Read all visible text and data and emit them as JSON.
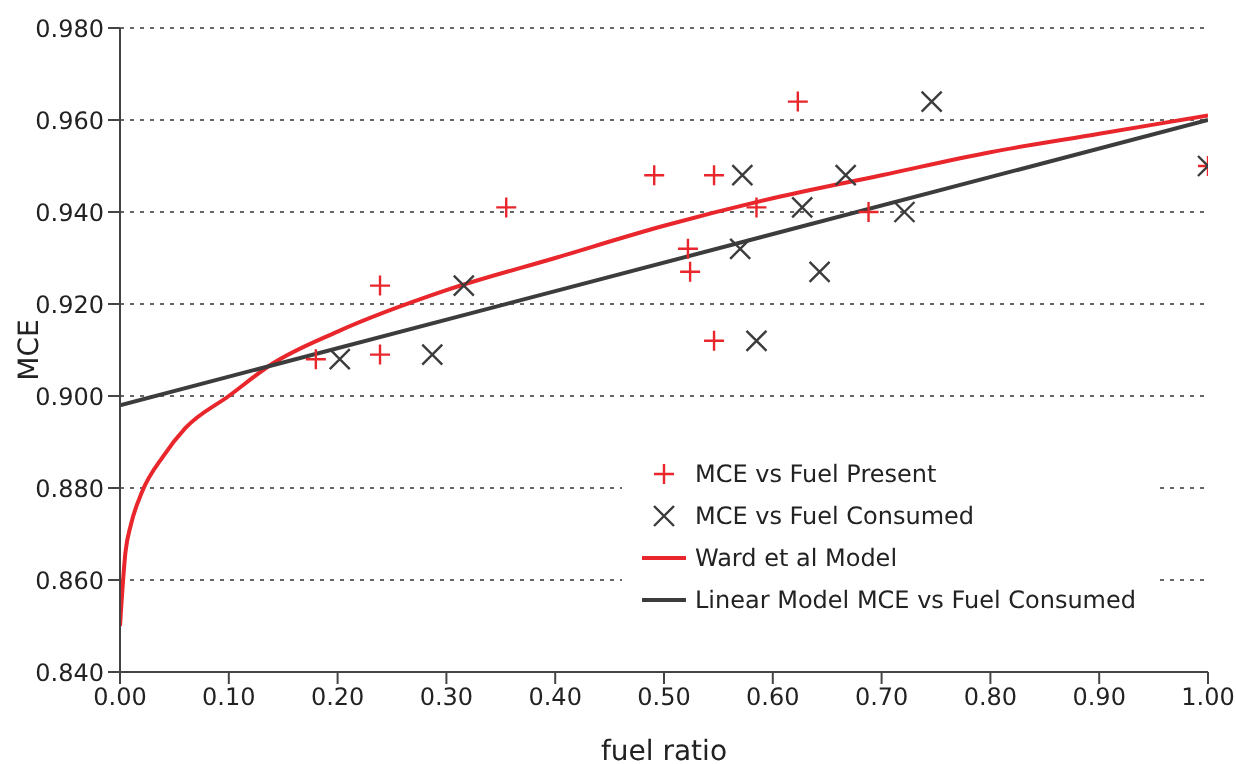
{
  "chart_data": {
    "type": "scatter",
    "xlabel": "fuel ratio",
    "ylabel": "MCE",
    "xlim": [
      0,
      1
    ],
    "xticks": [
      {
        "value": 0,
        "label": "0.00"
      },
      {
        "value": 0.1,
        "label": "0.10"
      },
      {
        "value": 0.2,
        "label": "0.20"
      },
      {
        "value": 0.3,
        "label": "0.30"
      },
      {
        "value": 0.4,
        "label": "0.40"
      },
      {
        "value": 0.5,
        "label": "0.50"
      },
      {
        "value": 0.6,
        "label": "0.60"
      },
      {
        "value": 0.7,
        "label": "0.70"
      },
      {
        "value": 0.8,
        "label": "0.80"
      },
      {
        "value": 0.9,
        "label": "0.90"
      },
      {
        "value": 1,
        "label": "1.00"
      }
    ],
    "ylim": [
      0.84,
      0.98
    ],
    "yticks": [
      {
        "value": 0.84,
        "label": "0.840"
      },
      {
        "value": 0.86,
        "label": "0.860"
      },
      {
        "value": 0.88,
        "label": "0.880"
      },
      {
        "value": 0.9,
        "label": "0.900"
      },
      {
        "value": 0.92,
        "label": "0.920"
      },
      {
        "value": 0.94,
        "label": "0.940"
      },
      {
        "value": 0.96,
        "label": "0.960"
      },
      {
        "value": 0.98,
        "label": "0.980"
      }
    ],
    "grid": "y",
    "legend": "bottom right",
    "series": [
      {
        "name": "MCE vs Fuel Present",
        "marker": "plus",
        "color": "#e8262b",
        "x": [
          0.18,
          0.239,
          0.239,
          0.355,
          0.491,
          0.522,
          0.524,
          0.546,
          0.546,
          0.585,
          0.623,
          0.688,
          1.0
        ],
        "values": [
          0.908,
          0.924,
          0.909,
          0.941,
          0.948,
          0.932,
          0.927,
          0.948,
          0.912,
          0.941,
          0.964,
          0.94,
          0.95
        ]
      },
      {
        "name": "MCE vs Fuel Consumed",
        "marker": "cross",
        "color": "#3c3c3c",
        "x": [
          0.202,
          0.287,
          0.316,
          0.572,
          0.57,
          0.627,
          0.643,
          0.585,
          0.667,
          0.721,
          0.746,
          1.0
        ],
        "values": [
          0.908,
          0.909,
          0.924,
          0.948,
          0.932,
          0.941,
          0.927,
          0.912,
          0.948,
          0.94,
          0.964,
          0.95
        ]
      },
      {
        "name": "Ward et al Model",
        "type": "line",
        "marker": "none",
        "color": "#e8262b",
        "x": [
          0,
          0.005,
          0.01,
          0.02,
          0.04,
          0.06,
          0.1,
          0.14,
          0.2,
          0.3,
          0.4,
          0.5,
          0.6,
          0.7,
          0.8,
          0.9,
          1.0
        ],
        "values": [
          0.85,
          0.866,
          0.872,
          0.879,
          0.887,
          0.893,
          0.9,
          0.907,
          0.914,
          0.923,
          0.93,
          0.937,
          0.943,
          0.948,
          0.953,
          0.957,
          0.961
        ]
      },
      {
        "name": "Linear Model MCE vs Fuel Consumed",
        "type": "line",
        "marker": "none",
        "color": "#3c3c3c",
        "x": [
          0,
          1
        ],
        "values": [
          0.898,
          0.96
        ]
      }
    ]
  }
}
